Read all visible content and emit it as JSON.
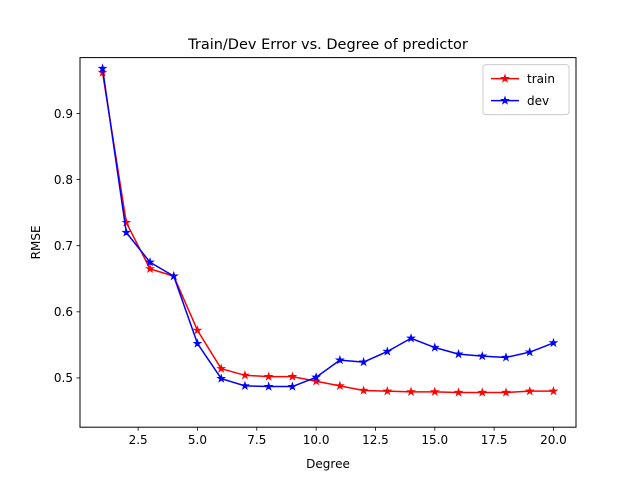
{
  "chart_data": {
    "type": "line",
    "title": "Train/Dev Error vs. Degree of predictor",
    "xlabel": "Degree",
    "ylabel": "RMSE",
    "xlim": [
      0.05,
      20.95
    ],
    "ylim": [
      0.4255,
      0.9845
    ],
    "x": [
      1,
      2,
      3,
      4,
      5,
      6,
      7,
      8,
      9,
      10,
      11,
      12,
      13,
      14,
      15,
      16,
      17,
      18,
      19,
      20
    ],
    "xticks": [
      2.5,
      5.0,
      7.5,
      10.0,
      12.5,
      15.0,
      17.5,
      20.0
    ],
    "xtick_labels": [
      "2.5",
      "5.0",
      "7.5",
      "10.0",
      "12.5",
      "15.0",
      "17.5",
      "20.0"
    ],
    "yticks": [
      0.5,
      0.6,
      0.7,
      0.8,
      0.9
    ],
    "ytick_labels": [
      "0.5",
      "0.6",
      "0.7",
      "0.8",
      "0.9"
    ],
    "grid": false,
    "legend_position": "top-right",
    "series": [
      {
        "name": "train",
        "color": "#ff0000",
        "marker": "star",
        "values": [
          0.962,
          0.735,
          0.665,
          0.654,
          0.572,
          0.514,
          0.504,
          0.502,
          0.502,
          0.495,
          0.488,
          0.481,
          0.48,
          0.479,
          0.479,
          0.478,
          0.478,
          0.478,
          0.48,
          0.48
        ]
      },
      {
        "name": "dev",
        "color": "#0000ff",
        "marker": "star",
        "values": [
          0.968,
          0.72,
          0.675,
          0.654,
          0.552,
          0.499,
          0.488,
          0.487,
          0.487,
          0.501,
          0.527,
          0.524,
          0.54,
          0.56,
          0.546,
          0.536,
          0.533,
          0.531,
          0.539,
          0.553
        ]
      }
    ]
  }
}
